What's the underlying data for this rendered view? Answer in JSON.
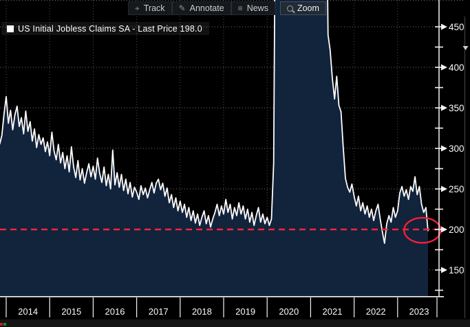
{
  "toolbar": {
    "buttons": [
      {
        "label": "Track",
        "icon": "track-icon",
        "glyph": "⌖",
        "selected": false
      },
      {
        "label": "Annotate",
        "icon": "annotate-icon",
        "glyph": "✎",
        "selected": false
      },
      {
        "label": "News",
        "icon": "news-icon",
        "glyph": "≡",
        "selected": false
      },
      {
        "label": "Zoom",
        "icon": "zoom-icon",
        "glyph": "",
        "selected": true
      }
    ]
  },
  "legend": {
    "swatch_color": "#ffffff",
    "label": "US Initial Jobless Claims SA - Last Price 198.0"
  },
  "colors": {
    "background": "#000000",
    "line": "#ffffff",
    "area_fill": "#12233c",
    "grid": "#9b9b9b",
    "axis": "#f5f5f5",
    "tick_label": "#fafafa",
    "accent_red": "#f8253c",
    "scroll_strip": "#3f3f3f",
    "scroll_arrow": "#cfcfcf"
  },
  "chart_data": {
    "type": "area",
    "title": "US Initial Jobless Claims SA - Last Price 198.0",
    "series_name": "US Initial Jobless Claims SA",
    "last_price": 198.0,
    "units": "thousands",
    "x_start_year": 2013.85,
    "x_step_years": 0.05,
    "values": [
      305,
      316,
      342,
      364,
      331,
      347,
      323,
      341,
      352,
      327,
      338,
      318,
      346,
      321,
      333,
      309,
      324,
      301,
      317,
      305,
      313,
      296,
      308,
      291,
      320,
      297,
      286,
      305,
      282,
      295,
      275,
      291,
      271,
      302,
      277,
      264,
      285,
      261,
      275,
      257,
      270,
      281,
      265,
      278,
      262,
      288,
      269,
      258,
      277,
      254,
      268,
      250,
      298,
      255,
      270,
      252,
      268,
      248,
      262,
      244,
      258,
      240,
      252,
      246,
      237,
      254,
      243,
      251,
      239,
      249,
      258,
      245,
      257,
      262,
      249,
      257,
      241,
      251,
      233,
      243,
      227,
      239,
      223,
      235,
      221,
      231,
      215,
      227,
      211,
      223,
      208,
      219,
      205,
      215,
      223,
      207,
      217,
      203,
      213,
      221,
      231,
      217,
      229,
      219,
      237,
      221,
      231,
      213,
      227,
      217,
      233,
      219,
      229,
      213,
      225,
      209,
      221,
      205,
      217,
      227,
      209,
      219,
      207,
      215,
      205,
      213,
      282,
      700,
      700,
      700,
      700,
      700,
      700,
      700,
      700,
      700,
      700,
      700,
      700,
      700,
      700,
      700,
      700,
      700,
      700,
      700,
      700,
      700,
      700,
      700,
      700,
      440,
      421,
      386,
      361,
      389,
      353,
      345,
      301,
      263,
      252,
      246,
      256,
      241,
      229,
      241,
      223,
      233,
      219,
      229,
      215,
      225,
      211,
      223,
      231,
      213,
      197,
      183,
      207,
      217,
      209,
      227,
      215,
      223,
      245,
      253,
      241,
      249,
      237,
      253,
      247,
      265,
      243,
      253,
      231,
      221,
      227,
      198
    ],
    "off_scale_note": "values of 700 represent the 2020-2021 COVID spike drawn off the top of the plot",
    "ylim": [
      118,
      483
    ],
    "y_ticks": [
      450,
      400,
      350,
      300,
      250,
      200,
      150
    ],
    "y_minor_ticks": [
      425,
      375,
      325,
      275,
      225,
      175,
      125
    ],
    "x_labels": [
      "2014",
      "2015",
      "2016",
      "2017",
      "2018",
      "2019",
      "2020",
      "2021",
      "2022",
      "2023"
    ],
    "grid": "dotted",
    "legend_position": "top-left",
    "reference_line": {
      "value": 200,
      "style": "dashed",
      "color": "#f8253c"
    },
    "annotation_ellipse": {
      "center_year": 2023.57,
      "center_value": 199,
      "radius_years": 0.42,
      "radius_value": 15.5,
      "color": "#f2203a"
    }
  }
}
